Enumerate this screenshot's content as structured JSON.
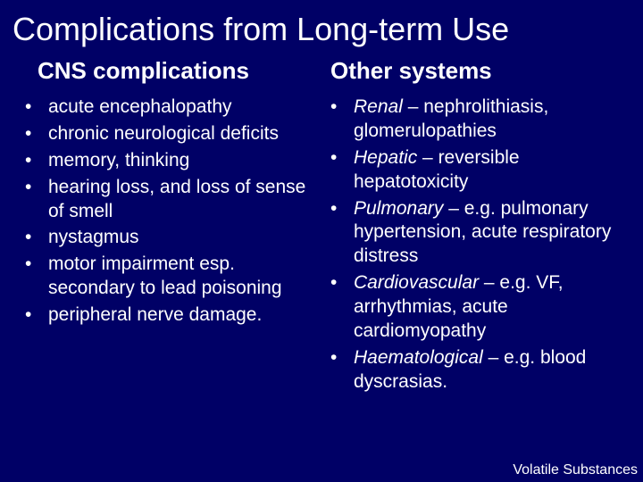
{
  "title": "Complications from Long-term Use",
  "left": {
    "heading": "CNS complications",
    "items": [
      [
        {
          "t": "acute encephalopathy"
        }
      ],
      [
        {
          "t": "chronic neurological deficits"
        }
      ],
      [
        {
          "t": "memory, thinking"
        }
      ],
      [
        {
          "t": "hearing loss, and loss of sense of smell"
        }
      ],
      [
        {
          "t": "nystagmus"
        }
      ],
      [
        {
          "t": "motor impairment esp. secondary to lead poisoning"
        }
      ],
      [
        {
          "t": "peripheral nerve damage."
        }
      ]
    ]
  },
  "right": {
    "heading": "Other systems",
    "items": [
      [
        {
          "t": "Renal",
          "i": true
        },
        {
          "t": " – nephrolithiasis, glomerulopathies"
        }
      ],
      [
        {
          "t": "Hepatic",
          "i": true
        },
        {
          "t": " – "
        },
        {
          "t": "reversible hepatotoxicity"
        }
      ],
      [
        {
          "t": "Pulmonary",
          "i": true
        },
        {
          "t": " – "
        },
        {
          "t": "e.g. pulmonary hypertension, acute respiratory distress"
        }
      ],
      [
        {
          "t": "Cardiovascular",
          "i": true
        },
        {
          "t": " – "
        },
        {
          "t": "e.g. VF, arrhythmias, acute cardiomyopathy"
        }
      ],
      [
        {
          "t": "Haematological",
          "i": true
        },
        {
          "t": " – "
        },
        {
          "t": "e.g. blood dyscrasias."
        }
      ]
    ]
  },
  "footer": "Volatile Substances",
  "bullet": "•",
  "colors": {
    "background": "#000066",
    "text": "#ffffff"
  }
}
